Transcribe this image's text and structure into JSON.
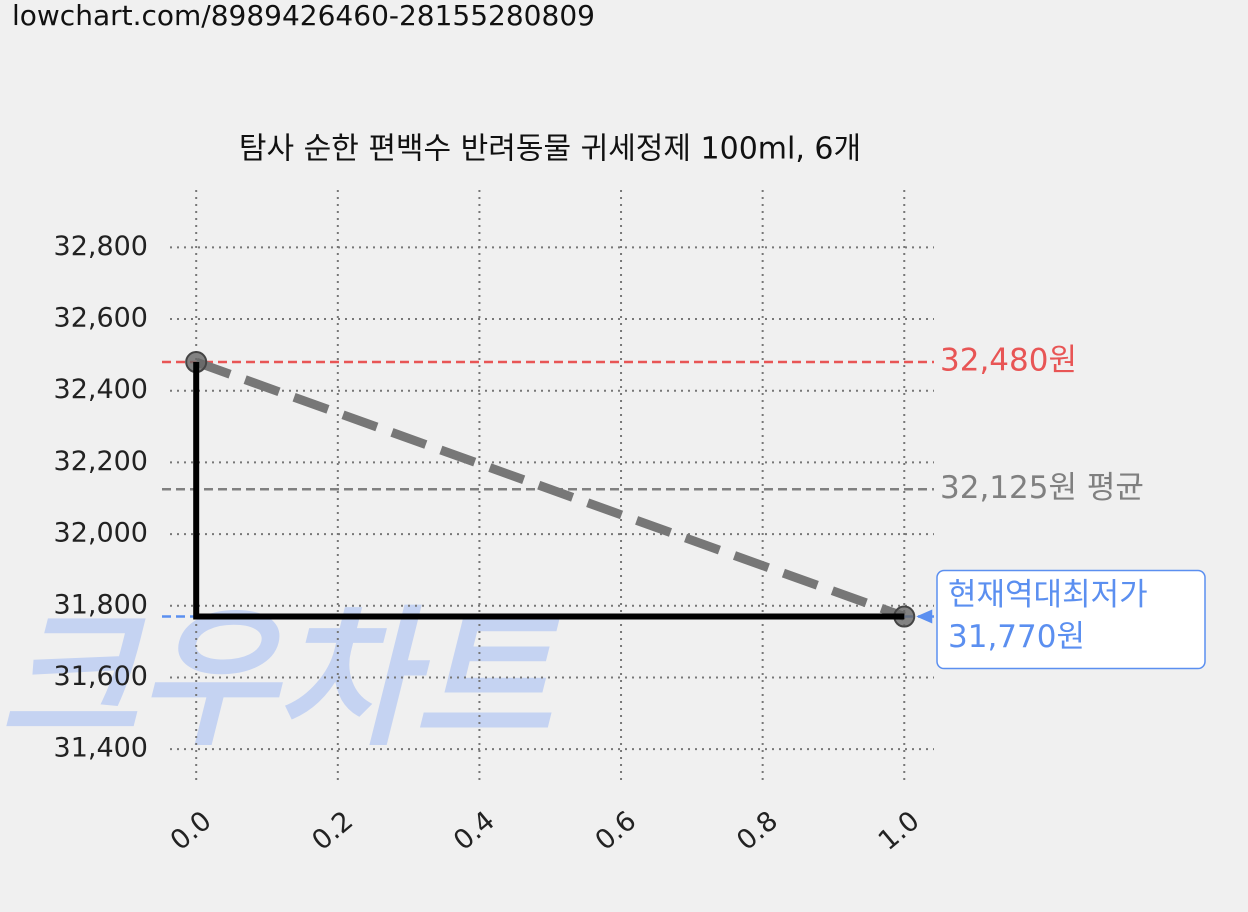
{
  "header": {
    "url": "lowchart.com/8989426460-28155280809"
  },
  "chart_data": {
    "type": "line",
    "title": "탐사 순한 편백수 반려동물 귀세정제 100ml, 6개",
    "watermark": "크우차트",
    "x": [
      0,
      1
    ],
    "series": [
      {
        "color": "#777777",
        "style": "dashed",
        "marker": true,
        "values": [
          32480,
          31770
        ]
      },
      {
        "color": "#000000",
        "style": "step-pre",
        "values": [
          32480,
          31770
        ]
      }
    ],
    "hlines": [
      {
        "value": 32480,
        "label": "32,480원",
        "color": "#e85555"
      },
      {
        "value": 32125,
        "label": "32,125원 평균",
        "color": "#808080"
      },
      {
        "value": 31770,
        "label": "31,770원",
        "note": "현재역대최저가",
        "color": "#5b8ff0"
      }
    ],
    "xlim": [
      -0.037,
      1.042
    ],
    "ylim": [
      31300,
      32960
    ],
    "xticks": [
      {
        "value": 0,
        "label": "0.0"
      },
      0.2,
      0.4,
      0.6,
      0.8,
      {
        "value": 1,
        "label": "1.0"
      }
    ],
    "yticks": [
      {
        "value": 31400,
        "label": "31,400"
      },
      {
        "value": 31600,
        "label": "31,600"
      },
      {
        "value": 31800,
        "label": "31,800"
      },
      {
        "value": 32000,
        "label": "32,000"
      },
      {
        "value": 32200,
        "label": "32,200"
      },
      {
        "value": 32400,
        "label": "32,400"
      },
      {
        "value": 32600,
        "label": "32,600"
      },
      {
        "value": 32800,
        "label": "32,800"
      }
    ],
    "grid": true
  }
}
